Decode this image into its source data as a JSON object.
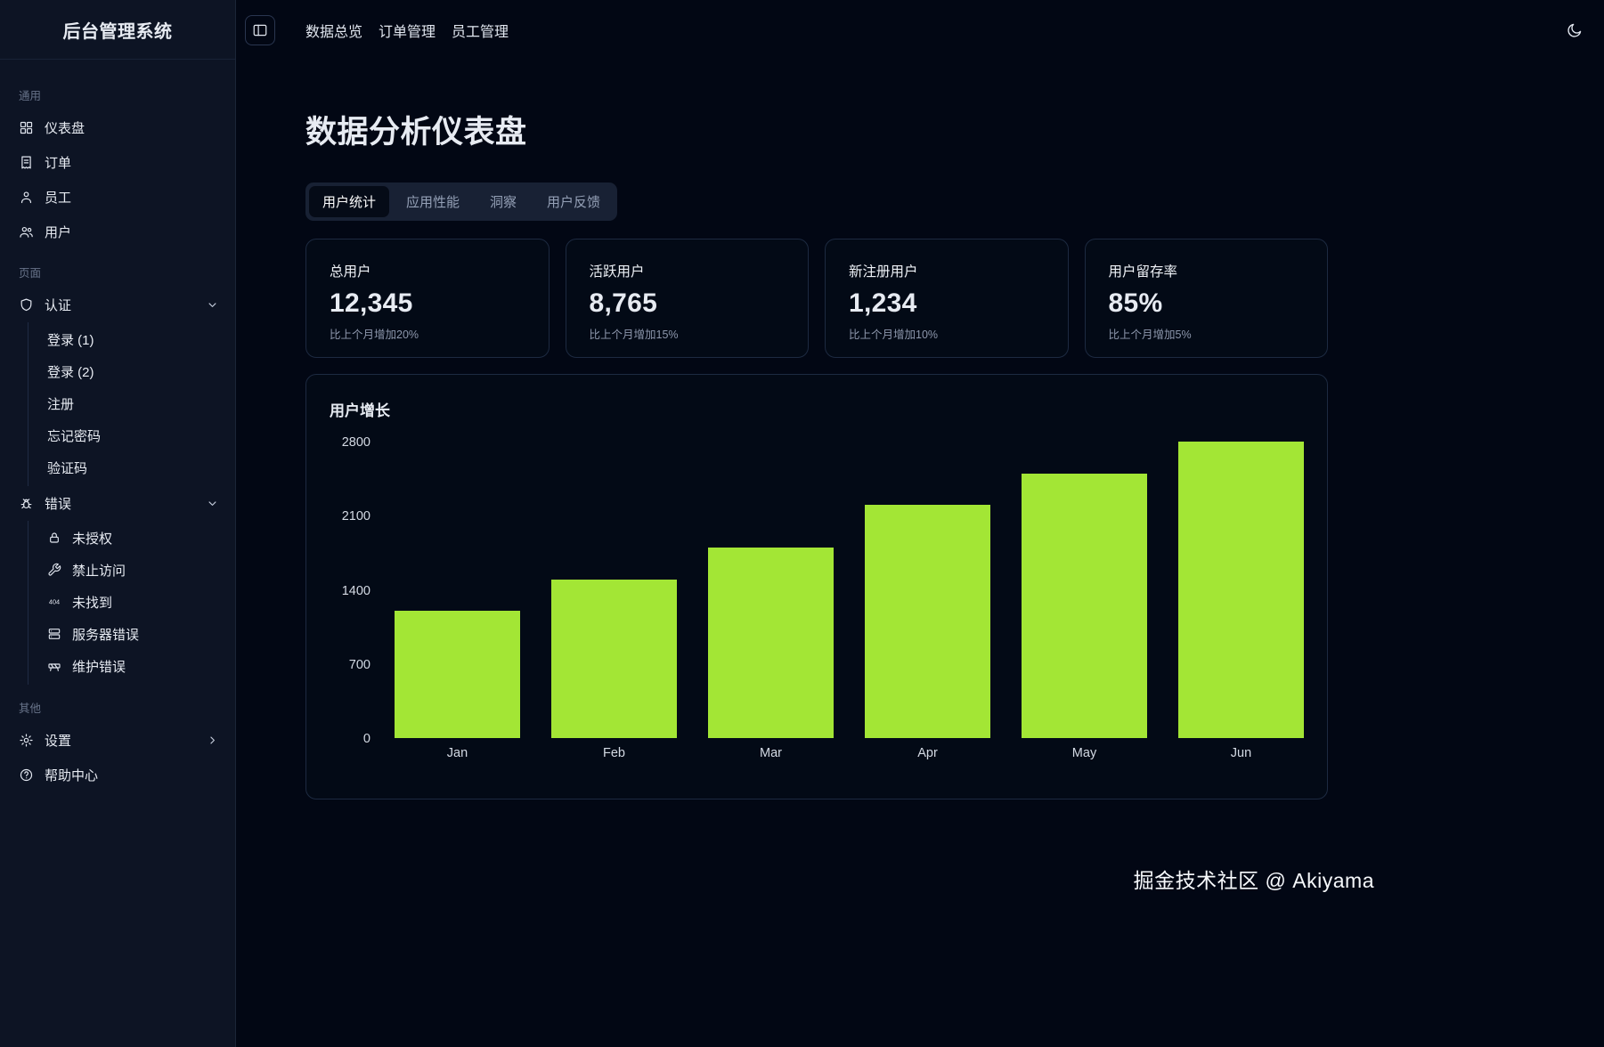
{
  "app": {
    "accent_color": "#a3e635",
    "theme": "dark"
  },
  "sidebar": {
    "title": "后台管理系统",
    "sections": {
      "general": {
        "label": "通用",
        "items": [
          {
            "label": "仪表盘"
          },
          {
            "label": "订单"
          },
          {
            "label": "员工"
          },
          {
            "label": "用户"
          }
        ]
      },
      "pages": {
        "label": "页面",
        "auth": {
          "label": "认证",
          "children": [
            "登录 (1)",
            "登录 (2)",
            "注册",
            "忘记密码",
            "验证码"
          ]
        },
        "errors": {
          "label": "错误",
          "children": [
            "未授权",
            "禁止访问",
            "未找到",
            "服务器错误",
            "维护错误"
          ]
        }
      },
      "other": {
        "label": "其他",
        "items": [
          {
            "label": "设置"
          },
          {
            "label": "帮助中心"
          }
        ]
      }
    }
  },
  "topbar": {
    "nav": [
      "数据总览",
      "订单管理",
      "员工管理"
    ]
  },
  "main": {
    "title": "数据分析仪表盘",
    "tabs": [
      "用户统计",
      "应用性能",
      "洞察",
      "用户反馈"
    ],
    "active_tab": "用户统计",
    "stats": [
      {
        "label": "总用户",
        "value": "12,345",
        "delta": "比上个月增加20%"
      },
      {
        "label": "活跃用户",
        "value": "8,765",
        "delta": "比上个月增加15%"
      },
      {
        "label": "新注册用户",
        "value": "1,234",
        "delta": "比上个月增加10%"
      },
      {
        "label": "用户留存率",
        "value": "85%",
        "delta": "比上个月增加5%"
      }
    ]
  },
  "chart_data": {
    "type": "bar",
    "title": "用户增长",
    "categories": [
      "Jan",
      "Feb",
      "Mar",
      "Apr",
      "May",
      "Jun"
    ],
    "values": [
      1200,
      1500,
      1800,
      2200,
      2500,
      2800
    ],
    "ylim": [
      0,
      2800
    ],
    "yticks": [
      0,
      700,
      1400,
      2100,
      2800
    ],
    "bar_color": "#a3e635",
    "grid": false,
    "legend": false,
    "xlabel": "",
    "ylabel": ""
  },
  "footer": {
    "watermark": "掘金技术社区 @ Akiyama"
  }
}
